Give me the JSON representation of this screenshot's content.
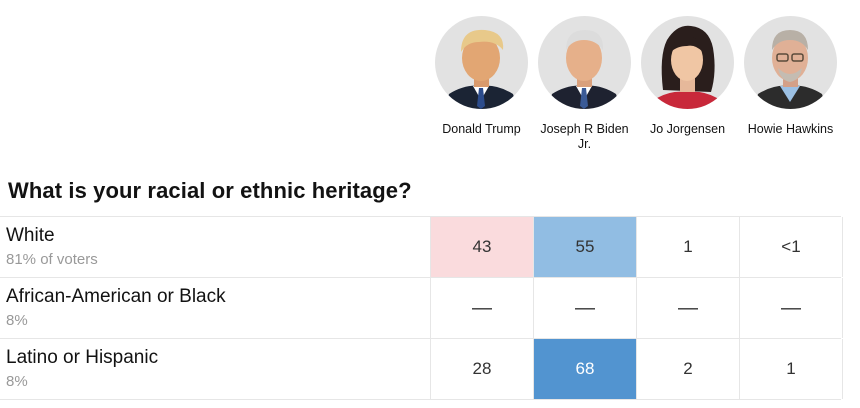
{
  "candidates": [
    {
      "name": "Donald Trump",
      "icon": "person-portrait-icon"
    },
    {
      "name": "Joseph R Biden Jr.",
      "icon": "person-portrait-icon"
    },
    {
      "name": "Jo Jorgensen",
      "icon": "person-portrait-icon"
    },
    {
      "name": "Howie Hawkins",
      "icon": "person-portrait-icon"
    }
  ],
  "question": "What is your racial or ethnic heritage?",
  "rows": [
    {
      "label": "White",
      "sub": "81% of voters",
      "cells": [
        {
          "value": "43",
          "color": "#fadbdd"
        },
        {
          "value": "55",
          "color": "#91bde3"
        },
        {
          "value": "1",
          "color": "#ffffff"
        },
        {
          "value": "<1",
          "color": "#ffffff"
        }
      ]
    },
    {
      "label": "African-American or Black",
      "sub": "8%",
      "cells": [
        {
          "value": "—",
          "color": "#ffffff"
        },
        {
          "value": "—",
          "color": "#ffffff"
        },
        {
          "value": "—",
          "color": "#ffffff"
        },
        {
          "value": "—",
          "color": "#ffffff"
        }
      ]
    },
    {
      "label": "Latino or Hispanic",
      "sub": "8%",
      "cells": [
        {
          "value": "28",
          "color": "#ffffff"
        },
        {
          "value": "68",
          "color": "#5294d0"
        },
        {
          "value": "2",
          "color": "#ffffff"
        },
        {
          "value": "1",
          "color": "#ffffff"
        }
      ]
    }
  ]
}
